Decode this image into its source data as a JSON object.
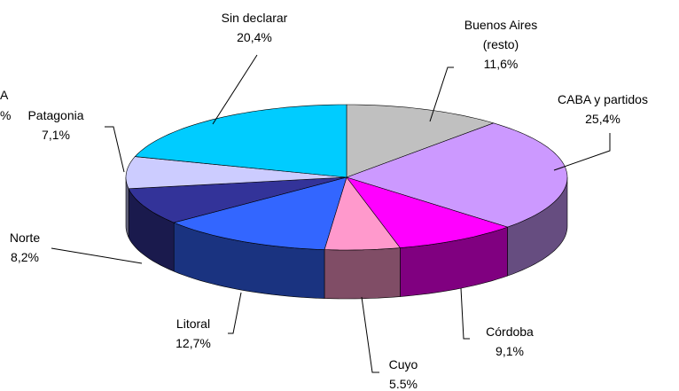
{
  "chart_data": {
    "type": "pie3d",
    "categories": [
      "Buenos Aires (resto)",
      "CABA y partidos",
      "Córdoba",
      "Cuyo",
      "Litoral",
      "Norte",
      "Patagonia",
      "Sin declarar"
    ],
    "values": [
      11.6,
      25.4,
      9.1,
      5.5,
      12.7,
      8.2,
      7.1,
      20.4
    ],
    "value_labels": [
      "11,6%",
      "25,4%",
      "9,1%",
      "5.5%",
      "12,7%",
      "8,2%",
      "7,1%",
      "20,4%"
    ],
    "colors": [
      "#c0c0c0",
      "#cc99ff",
      "#ff00ff",
      "#ff99cc",
      "#3366ff",
      "#333399",
      "#ccccff",
      "#00ccff"
    ],
    "annotations": [
      "A",
      "%"
    ]
  }
}
